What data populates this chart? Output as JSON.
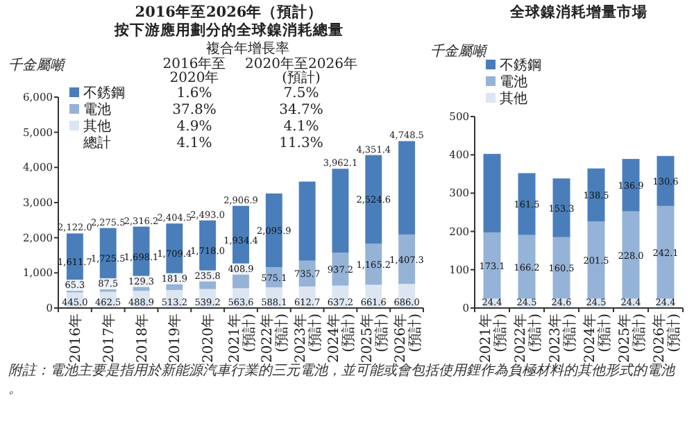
{
  "chart_data": [
    {
      "type": "bar",
      "stacked": true,
      "title": "2016年至2026年（預計）",
      "subtitle": "按下游應用劃分的全球鎳消耗總量",
      "ylabel": "千金屬噸",
      "categories": [
        "2016年",
        "2017年",
        "2018年",
        "2019年",
        "2020年",
        "2021年\n(預計)",
        "2022年\n(預計)",
        "2023年\n(預計)",
        "2024年\n(預計)",
        "2025年\n(預計)",
        "2026年\n(預計)"
      ],
      "ylim": [
        0,
        6000
      ],
      "yticks": [
        0,
        {
          "value": 1000,
          "label": "1,000"
        },
        {
          "value": 2000,
          "label": "2,000"
        },
        {
          "value": 3000,
          "label": "3,000"
        },
        {
          "value": 4000,
          "label": "4,000"
        },
        {
          "value": 5000,
          "label": "5,000"
        },
        {
          "value": 6000,
          "label": "6,000"
        }
      ],
      "grid": false,
      "legend": "top left",
      "series": [
        {
          "name": "其他",
          "color": "#dce6f2",
          "values": [
            445.0,
            462.5,
            488.9,
            513.2,
            539.2,
            563.6,
            588.1,
            612.7,
            637.2,
            661.6,
            686.0
          ],
          "value_labels": [
            "445.0",
            "462.5",
            "488.9",
            "513.2",
            "539.2",
            "563.6",
            "588.1",
            "612.7",
            "637.2",
            "661.6",
            "686.0"
          ]
        },
        {
          "name": "電池",
          "color": "#95b3d7",
          "values": [
            65.3,
            87.5,
            129.3,
            181.9,
            235.8,
            408.9,
            575.1,
            735.7,
            937.2,
            1165.2,
            1407.3
          ],
          "value_labels": [
            "65.3",
            "87.5",
            "129.3",
            "181.9",
            "235.8",
            "408.9",
            "575.1",
            "735.7",
            "937.2",
            "1,165.2",
            "1,407.3"
          ]
        },
        {
          "name": "不銹鋼",
          "color": "#4a7ebb",
          "values": [
            1611.7,
            1725.5,
            1698.1,
            1709.4,
            1718.0,
            1934.4,
            2095.9,
            2249,
            2387.7,
            2524.6,
            2655.2
          ],
          "value_labels": [
            "1,611.7",
            "1,725.5",
            "1,698.1",
            "1,709.4",
            "1,718.0",
            "1,934.4",
            "2,095.9",
            null,
            null,
            "2,524.6",
            null
          ]
        }
      ],
      "totals": [
        "2,122.0",
        "2,275.5",
        "2,316.2",
        "2,404.5",
        "2,493.0",
        "2,906.9",
        null,
        null,
        "3,962.1",
        "4,351.4",
        "4,748.5"
      ],
      "annotations": [
        "複合年增長率",
        "2016年至\n2020年",
        "2020年至2026年\n(預計)",
        "1.6%",
        "7.5%",
        "37.8%",
        "34.7%",
        "4.9%",
        "4.1%",
        "總計",
        "4.1%",
        "11.3%",
        "附註：電池主要是指用於新能源汽車行業的三元電池，並可能或會包括使用鋰作為負極材料的其他形式的電池。"
      ]
    },
    {
      "type": "bar",
      "stacked": true,
      "title": "全球鎳消耗增量市場",
      "ylabel": "千金屬噸",
      "categories": [
        "2021年\n(預計)",
        "2022年\n(預計)",
        "2023年\n(預計)",
        "2024年\n(預計)",
        "2025年\n(預計)",
        "2026年\n(預計)"
      ],
      "ylim": [
        0,
        500
      ],
      "yticks": [
        0,
        100,
        200,
        300,
        400,
        500
      ],
      "grid": false,
      "legend": "top left",
      "series": [
        {
          "name": "其他",
          "color": "#dce6f2",
          "values": [
            24.4,
            24.5,
            24.6,
            24.5,
            24.4,
            24.4
          ],
          "value_labels": [
            "24.4",
            "24.5",
            "24.6",
            "24.5",
            "24.4",
            "24.4"
          ]
        },
        {
          "name": "電池",
          "color": "#95b3d7",
          "values": [
            173.1,
            166.2,
            160.5,
            201.5,
            228.0,
            242.1
          ],
          "value_labels": [
            "173.1",
            "166.2",
            "160.5",
            "201.5",
            "228.0",
            "242.1"
          ]
        },
        {
          "name": "不銹鋼",
          "color": "#4a7ebb",
          "values": [
            205,
            161.5,
            153.3,
            138.5,
            136.9,
            130.6
          ],
          "value_labels": [
            null,
            "161.5",
            "153.3",
            "138.5",
            "136.9",
            "130.6"
          ]
        }
      ]
    }
  ]
}
